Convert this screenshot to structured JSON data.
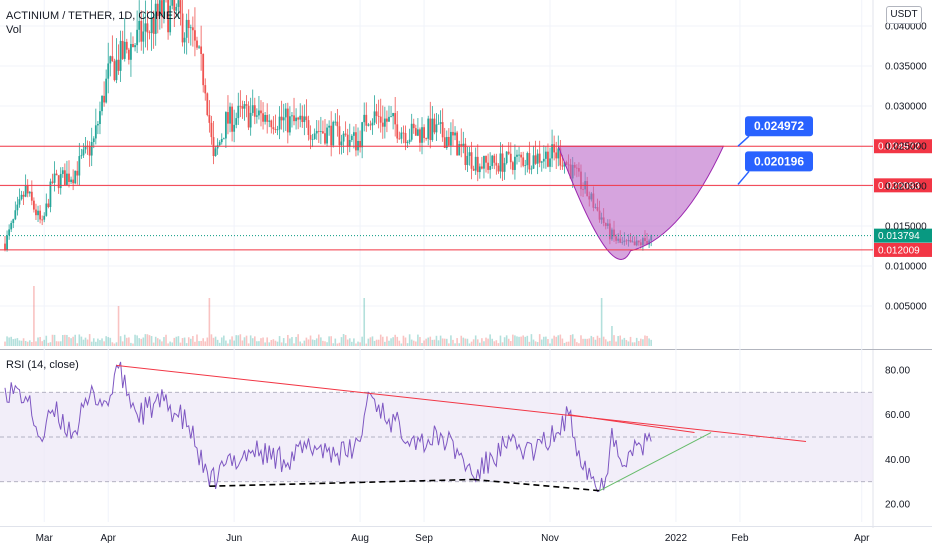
{
  "header": {
    "symbol": "ACTINIUM / TETHER, 1D, COINEX",
    "volume_label": "Vol",
    "indicator_label": "RSI (14, close)",
    "currency_badge": "USDT"
  },
  "colors": {
    "up": "#26a69a",
    "down": "#ef5350",
    "resistance_line": "#f23645",
    "cup_fill": "#ba68c8",
    "callout": "#2962ff",
    "rsi_line": "#7e57c2",
    "rsi_band": "#ede7f6",
    "trend_green": "#66bb6a",
    "last_price": "#089981"
  },
  "chart_data": [
    {
      "type": "candlestick",
      "y_ticks": [
        "0.040000",
        "0.035000",
        "0.030000",
        "0.025000",
        "0.020000",
        "0.015000",
        "0.010000",
        "0.005000"
      ],
      "y_tick_values": [
        0.04,
        0.035,
        0.03,
        0.025,
        0.02,
        0.015,
        0.01,
        0.005
      ],
      "ylim": [
        0.0,
        0.043
      ],
      "x_ticks": [
        "Mar",
        "Apr",
        "Jun",
        "Aug",
        "Sep",
        "Nov",
        "2022",
        "Feb",
        "Apr"
      ],
      "price_levels": [
        {
          "label": "0.024972",
          "value": 0.024972,
          "kind": "resistance"
        },
        {
          "label": "0.020083",
          "value": 0.020083,
          "kind": "resistance"
        },
        {
          "label": "0.013794",
          "value": 0.013794,
          "kind": "last"
        },
        {
          "label": "0.012009",
          "value": 0.012009,
          "kind": "support"
        }
      ],
      "callouts": [
        {
          "label": "0.024972",
          "value": 0.024972
        },
        {
          "label": "0.020196",
          "value": 0.020196
        }
      ],
      "pattern": "cup",
      "cup_rim_value": 0.024972,
      "cup_bottom_value": 0.0119,
      "close_path": [
        [
          "2021-02-10",
          0.0128
        ],
        [
          "2021-02-20",
          0.0195
        ],
        [
          "2021-02-28",
          0.015
        ],
        [
          "2021-03-05",
          0.0205
        ],
        [
          "2021-03-15",
          0.0215
        ],
        [
          "2021-03-25",
          0.0255
        ],
        [
          "2021-04-01",
          0.034
        ],
        [
          "2021-04-10",
          0.037
        ],
        [
          "2021-04-20",
          0.0395
        ],
        [
          "2021-04-28",
          0.042
        ],
        [
          "2021-05-05",
          0.041
        ],
        [
          "2021-05-12",
          0.038
        ],
        [
          "2021-05-18",
          0.033
        ],
        [
          "2021-05-22",
          0.023
        ],
        [
          "2021-05-28",
          0.028
        ],
        [
          "2021-06-05",
          0.029
        ],
        [
          "2021-06-20",
          0.0285
        ],
        [
          "2021-07-05",
          0.0275
        ],
        [
          "2021-07-20",
          0.0265
        ],
        [
          "2021-07-31",
          0.0255
        ],
        [
          "2021-08-05",
          0.029
        ],
        [
          "2021-08-15",
          0.028
        ],
        [
          "2021-08-25",
          0.0265
        ],
        [
          "2021-09-05",
          0.027
        ],
        [
          "2021-09-15",
          0.0258
        ],
        [
          "2021-09-20",
          0.024
        ],
        [
          "2021-09-30",
          0.0226
        ],
        [
          "2021-10-15",
          0.0232
        ],
        [
          "2021-10-30",
          0.0238
        ],
        [
          "2021-11-05",
          0.024
        ],
        [
          "2021-11-10",
          0.0225
        ],
        [
          "2021-11-18",
          0.0195
        ],
        [
          "2021-11-25",
          0.0165
        ],
        [
          "2021-11-30",
          0.014
        ],
        [
          "2021-12-05",
          0.0128
        ],
        [
          "2021-12-12",
          0.0125
        ],
        [
          "2021-12-20",
          0.0135
        ]
      ],
      "volume_spikes": [
        [
          "2021-02-24",
          0.0075
        ],
        [
          "2021-04-06",
          0.005
        ],
        [
          "2021-05-20",
          0.006
        ],
        [
          "2021-08-03",
          0.006
        ],
        [
          "2021-11-26",
          0.006
        ],
        [
          "2021-12-01",
          0.0025
        ]
      ]
    },
    {
      "type": "line",
      "name": "RSI",
      "y_ticks": [
        "80.00",
        "60.00",
        "40.00",
        "20.00"
      ],
      "y_tick_values": [
        80,
        60,
        40,
        20
      ],
      "ylim": [
        12,
        88
      ],
      "band": [
        30,
        70
      ],
      "midline": 50,
      "x": [
        "2021-02-10",
        "2021-02-20",
        "2021-02-28",
        "2021-03-05",
        "2021-03-15",
        "2021-03-25",
        "2021-04-01",
        "2021-04-05",
        "2021-04-15",
        "2021-04-28",
        "2021-05-10",
        "2021-05-20",
        "2021-05-28",
        "2021-06-10",
        "2021-06-25",
        "2021-07-10",
        "2021-07-25",
        "2021-08-01",
        "2021-08-05",
        "2021-08-15",
        "2021-08-30",
        "2021-09-10",
        "2021-09-20",
        "2021-09-25",
        "2021-10-10",
        "2021-10-25",
        "2021-11-05",
        "2021-11-10",
        "2021-11-15",
        "2021-11-25",
        "2021-11-28",
        "2021-12-01",
        "2021-12-05",
        "2021-12-10",
        "2021-12-20"
      ],
      "values": [
        72,
        68,
        48,
        62,
        52,
        70,
        64,
        82,
        60,
        66,
        55,
        28,
        38,
        44,
        40,
        46,
        42,
        48,
        70,
        58,
        48,
        50,
        40,
        32,
        46,
        44,
        52,
        60,
        44,
        26,
        32,
        54,
        40,
        44,
        48
      ],
      "trendlines": [
        {
          "from": [
            "2021-04-05",
            82
          ],
          "to": [
            "2022-03-05",
            48
          ],
          "color": "resistance_line",
          "style": "solid"
        },
        {
          "from": [
            "2021-11-10",
            60
          ],
          "to": [
            "2022-01-10",
            52
          ],
          "color": "resistance_line",
          "style": "solid"
        },
        {
          "from": [
            "2021-11-25",
            26
          ],
          "to": [
            "2022-01-18",
            52
          ],
          "color": "trend_green",
          "style": "solid"
        },
        {
          "from": [
            "2021-05-20",
            28
          ],
          "to": [
            "2021-09-25",
            31
          ],
          "color": "black",
          "style": "dashed"
        },
        {
          "from": [
            "2021-09-25",
            31
          ],
          "to": [
            "2021-11-25",
            26
          ],
          "color": "black",
          "style": "dashed"
        }
      ]
    }
  ]
}
